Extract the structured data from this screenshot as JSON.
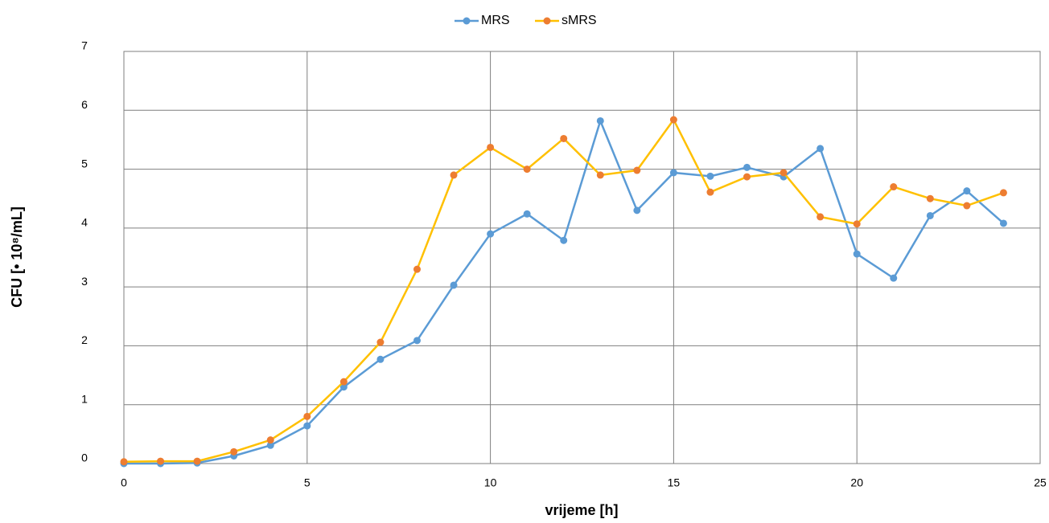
{
  "chart_data": {
    "type": "line",
    "x_label": "vrijeme [h]",
    "y_label": "CFU [• 10⁸/mL]",
    "x": [
      0,
      1,
      2,
      3,
      4,
      5,
      6,
      7,
      8,
      9,
      10,
      11,
      12,
      13,
      14,
      15,
      16,
      17,
      18,
      19,
      20,
      21,
      22,
      23,
      24
    ],
    "series": [
      {
        "name": "MRS",
        "color": "#5b9bd5",
        "line_color": "#5b9bd5",
        "values": [
          0,
          0,
          0.01,
          0.13,
          0.31,
          0.64,
          1.3,
          1.77,
          2.09,
          3.03,
          3.9,
          4.24,
          3.79,
          5.82,
          4.3,
          4.94,
          4.88,
          5.03,
          4.87,
          5.35,
          3.56,
          3.15,
          4.21,
          4.63,
          4.08
        ]
      },
      {
        "name": "sMRS",
        "color": "#ed7d31",
        "line_color": "#ffc000",
        "values": [
          0.03,
          0.04,
          0.04,
          0.2,
          0.4,
          0.8,
          1.39,
          2.06,
          3.3,
          4.9,
          5.37,
          5.0,
          5.52,
          4.9,
          4.98,
          5.84,
          4.61,
          4.87,
          4.94,
          4.19,
          4.07,
          4.7,
          4.5,
          4.38,
          4.6
        ]
      }
    ],
    "xlim": [
      0,
      25
    ],
    "xticks": [
      0,
      5,
      10,
      15,
      20,
      25
    ],
    "ylim": [
      0,
      7
    ],
    "yticks": [
      0,
      1,
      2,
      3,
      4,
      5,
      6,
      7
    ],
    "grid": true,
    "legend": "top"
  }
}
